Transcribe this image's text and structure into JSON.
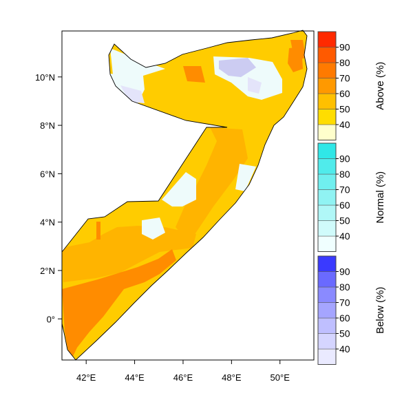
{
  "map": {
    "x_ticks": [
      {
        "lon": 42,
        "label": "42°E"
      },
      {
        "lon": 44,
        "label": "44°E"
      },
      {
        "lon": 46,
        "label": "46°E"
      },
      {
        "lon": 48,
        "label": "48°E"
      },
      {
        "lon": 50,
        "label": "50°E"
      }
    ],
    "y_ticks": [
      {
        "lat": 10,
        "label": "10°N"
      },
      {
        "lat": 8,
        "label": "8°N"
      },
      {
        "lat": 6,
        "label": "6°N"
      },
      {
        "lat": 4,
        "label": "4°N"
      },
      {
        "lat": 2,
        "label": "2°N"
      },
      {
        "lat": 0,
        "label": "0°"
      }
    ],
    "lon_range": [
      41,
      51.4
    ],
    "lat_range": [
      -1.7,
      11.9
    ]
  },
  "legends": [
    {
      "title": "Above (%)",
      "colors": [
        "#ffffcc",
        "#ffdd00",
        "#ffc000",
        "#ff9900",
        "#ff7a00",
        "#ff5a00",
        "#ff2a00"
      ],
      "labels": [
        "40",
        "50",
        "60",
        "70",
        "80",
        "90"
      ]
    },
    {
      "title": "Normal (%)",
      "colors": [
        "#f0ffff",
        "#d0fbfb",
        "#b0f7f7",
        "#90f3f3",
        "#70efef",
        "#50ebeb",
        "#30e7e7"
      ],
      "labels": [
        "40",
        "50",
        "60",
        "70",
        "80",
        "90"
      ]
    },
    {
      "title": "Below (%)",
      "colors": [
        "#eaeaff",
        "#d5d5ff",
        "#bfbfff",
        "#a5a5ff",
        "#8a8aff",
        "#6a6aff",
        "#3a3aff"
      ],
      "labels": [
        "40",
        "50",
        "60",
        "70",
        "80",
        "90"
      ]
    }
  ],
  "colors": {
    "above_50": "#ffcc00",
    "above_60": "#ffb400",
    "above_70": "#ff8c00",
    "normal_40": "#eefbfb",
    "below_50": "#ccccf2",
    "below_40": "#e4e4fa"
  }
}
